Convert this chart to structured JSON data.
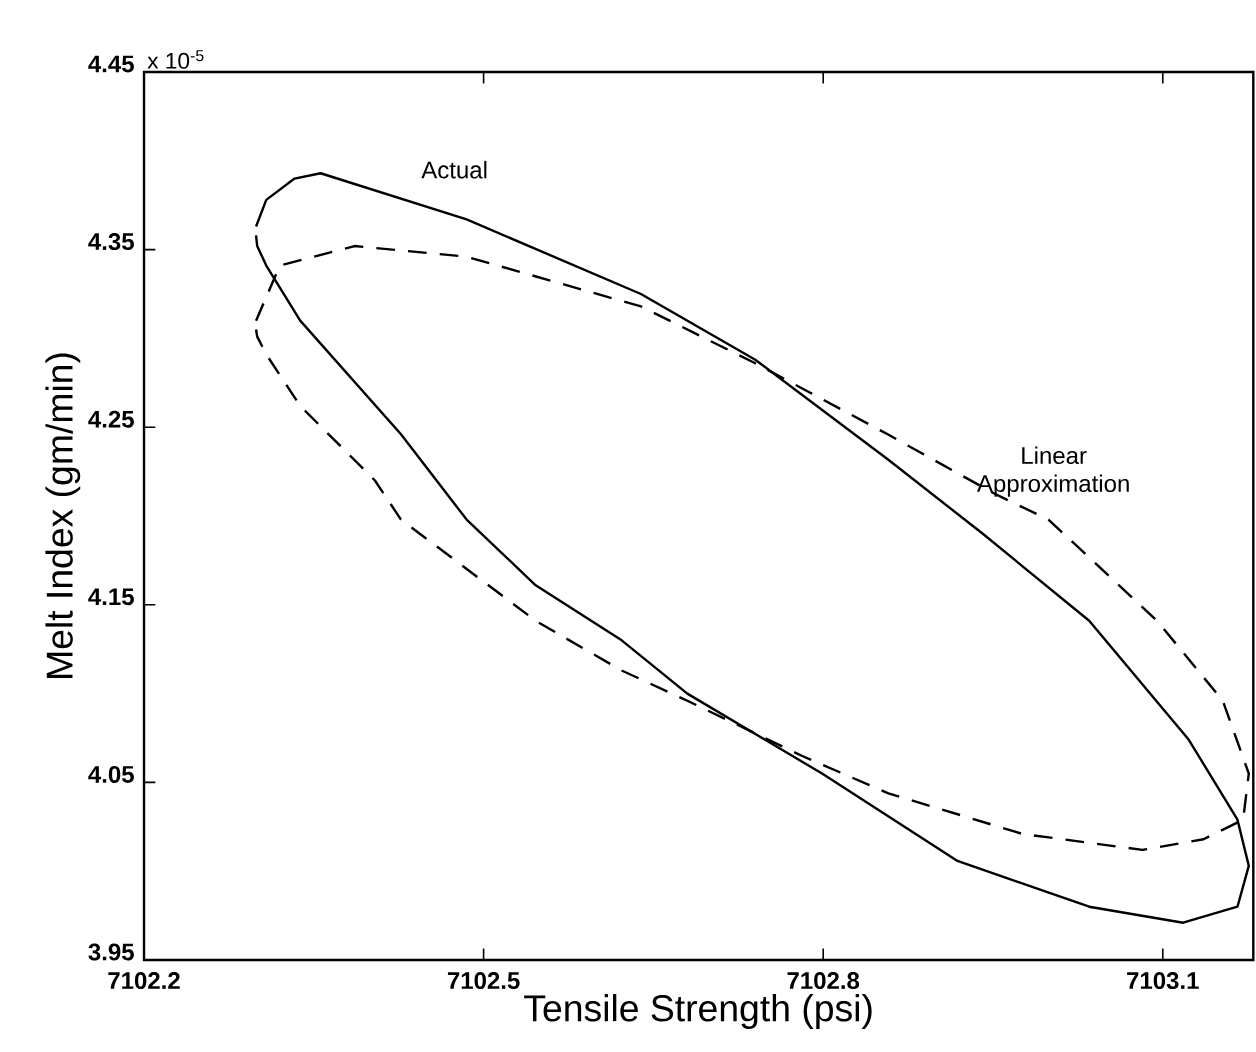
{
  "chart_data": {
    "type": "line",
    "xlabel": "Tensile Strength (psi)",
    "ylabel": "Melt Index (gm/min)",
    "annotations": [
      "x 10$^{-5}$"
    ],
    "xlim": [
      7102.2,
      7103.18
    ],
    "xticks": [
      7102.2,
      7102.5,
      7102.8,
      7103.1
    ],
    "ylim": [
      3.95,
      4.45
    ],
    "yticks": [
      3.95,
      4.05,
      4.15,
      4.25,
      4.35,
      4.45
    ],
    "legend": false,
    "grid": false,
    "marker": "none",
    "series": [
      {
        "name": "Actual",
        "color": "#000000",
        "line_style": "solid",
        "x": [
          7102.299,
          7102.308,
          7102.333,
          7102.356,
          7102.485,
          7102.639,
          7102.74,
          7102.857,
          7102.941,
          7103.035,
          7103.123,
          7103.166,
          7103.176,
          7103.166,
          7103.118,
          7103.035,
          7102.918,
          7102.799,
          7102.68,
          7102.622,
          7102.546,
          7102.485,
          7102.427,
          7102.338,
          7102.308,
          7102.3,
          7102.299
        ],
        "values": [
          4.363,
          4.378,
          4.39,
          4.393,
          4.367,
          4.325,
          4.288,
          4.232,
          4.19,
          4.141,
          4.074,
          4.029,
          4.003,
          3.98,
          3.971,
          3.98,
          4.006,
          4.055,
          4.1,
          4.13,
          4.161,
          4.198,
          4.246,
          4.31,
          4.341,
          4.352,
          4.358
        ]
      },
      {
        "name": "Linear Approximation",
        "color": "#000000",
        "line_style": "dashed",
        "x": [
          7102.299,
          7102.32,
          7102.386,
          7102.485,
          7102.639,
          7102.74,
          7102.857,
          7102.953,
          7102.999,
          7103.095,
          7103.153,
          7103.176,
          7103.171,
          7103.136,
          7103.082,
          7102.976,
          7102.857,
          7102.781,
          7102.68,
          7102.622,
          7102.546,
          7102.427,
          7102.404,
          7102.338,
          7102.308,
          7102.3,
          7102.299
        ],
        "values": [
          4.31,
          4.341,
          4.352,
          4.346,
          4.318,
          4.286,
          4.246,
          4.212,
          4.198,
          4.141,
          4.096,
          4.055,
          4.029,
          4.018,
          4.012,
          4.021,
          4.044,
          4.065,
          4.096,
          4.113,
          4.141,
          4.198,
          4.22,
          4.262,
          4.291,
          4.301,
          4.305
        ]
      }
    ]
  }
}
